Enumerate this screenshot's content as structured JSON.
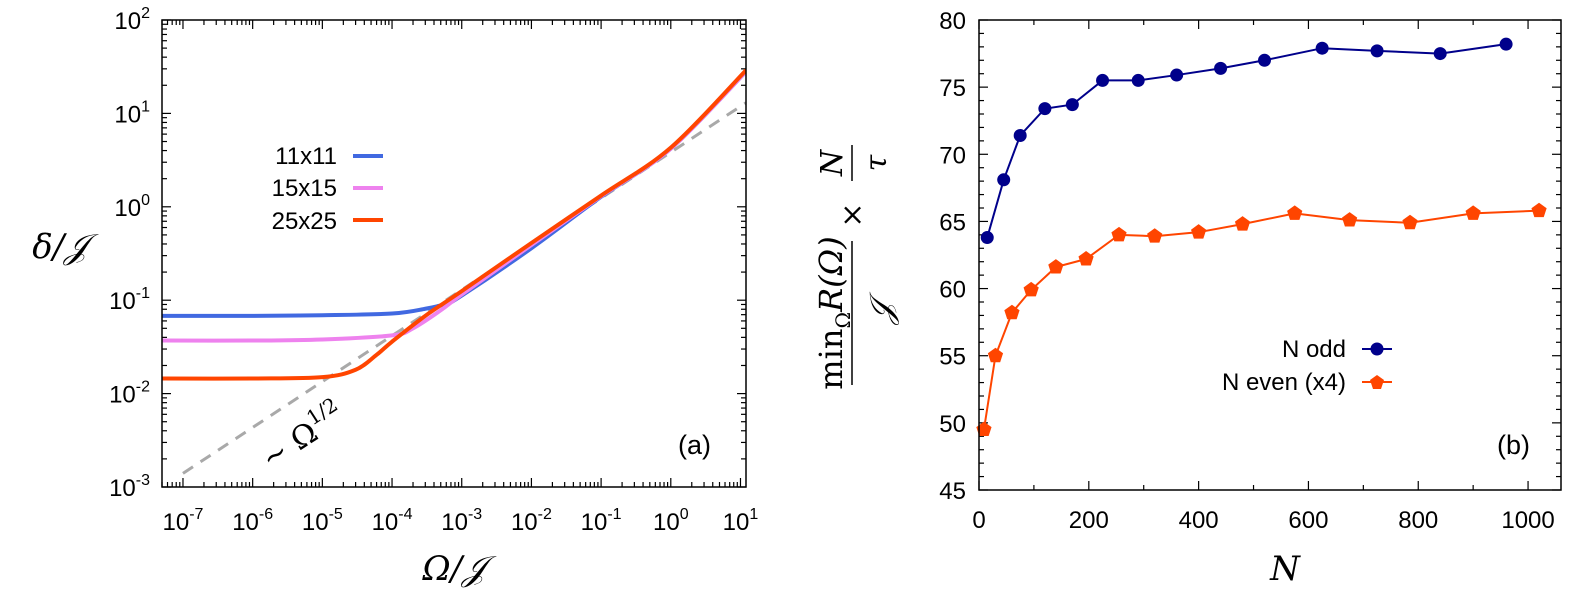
{
  "chart_data": [
    {
      "type": "line",
      "panel_label": "(a)",
      "xlabel": "Ω/𝒥",
      "ylabel": "δ/𝒥",
      "xscale": "log",
      "yscale": "log",
      "xlim": [
        5e-08,
        12
      ],
      "ylim": [
        0.001,
        100
      ],
      "x_tick_labels": [
        {
          "base": "10",
          "exp": "-7"
        },
        {
          "base": "10",
          "exp": "-6"
        },
        {
          "base": "10",
          "exp": "-5"
        },
        {
          "base": "10",
          "exp": "-4"
        },
        {
          "base": "10",
          "exp": "-3"
        },
        {
          "base": "10",
          "exp": "-2"
        },
        {
          "base": "10",
          "exp": "-1"
        },
        {
          "base": "10",
          "exp": "0"
        },
        {
          "base": "10",
          "exp": "1"
        }
      ],
      "y_tick_labels": [
        {
          "base": "10",
          "exp": "-3"
        },
        {
          "base": "10",
          "exp": "-2"
        },
        {
          "base": "10",
          "exp": "-1"
        },
        {
          "base": "10",
          "exp": "0"
        },
        {
          "base": "10",
          "exp": "1"
        },
        {
          "base": "10",
          "exp": "2"
        }
      ],
      "legend_position": "upper-left",
      "series": [
        {
          "name": "11x11",
          "color": "#4169e1",
          "x": [
            5e-08,
            1e-06,
            1e-05,
            0.0001,
            0.0003,
            0.0006,
            0.001,
            0.01,
            0.1,
            1,
            12
          ],
          "y": [
            0.068,
            0.068,
            0.069,
            0.072,
            0.081,
            0.092,
            0.112,
            0.36,
            1.28,
            4.2,
            28
          ]
        },
        {
          "name": "15x15",
          "color": "#ee82ee",
          "x": [
            5e-08,
            1e-06,
            1e-05,
            0.0001,
            0.0002,
            0.0005,
            0.001,
            0.01,
            0.1,
            1,
            12
          ],
          "y": [
            0.037,
            0.037,
            0.038,
            0.042,
            0.05,
            0.078,
            0.115,
            0.39,
            1.3,
            4.2,
            28
          ]
        },
        {
          "name": "25x25",
          "color": "#ff4500",
          "x": [
            5e-08,
            1e-06,
            1e-05,
            3e-05,
            6e-05,
            0.0001,
            0.0003,
            0.001,
            0.01,
            0.1,
            1,
            12
          ],
          "y": [
            0.0145,
            0.0145,
            0.015,
            0.018,
            0.026,
            0.036,
            0.068,
            0.125,
            0.41,
            1.32,
            4.3,
            29
          ]
        }
      ],
      "guide": {
        "label_prefix": "~ Ω",
        "label_exp": "1/2",
        "color": "#a9a9a9",
        "x": [
          1e-07,
          12
        ],
        "y": [
          0.0014,
          13
        ]
      }
    },
    {
      "type": "line",
      "panel_label": "(b)",
      "xlabel": "N",
      "ylabel": "min_Ω R(Ω) / 𝒥 × N / τ",
      "ylabel_parts": {
        "min": "min",
        "sub": "Ω",
        "r": "R(Ω)",
        "den": "𝒥",
        "times": "×",
        "n": "N",
        "tau": "τ"
      },
      "xlim": [
        0,
        1060
      ],
      "ylim": [
        45,
        80
      ],
      "x_ticks": [
        0,
        200,
        400,
        600,
        800,
        1000
      ],
      "y_ticks": [
        45,
        50,
        55,
        60,
        65,
        70,
        75,
        80
      ],
      "legend_position": "right-middle",
      "series": [
        {
          "name": "N odd",
          "color": "#00008b",
          "marker": "circle",
          "x": [
            15,
            45,
            75,
            120,
            170,
            225,
            290,
            360,
            440,
            520,
            625,
            725,
            840,
            960
          ],
          "y": [
            63.8,
            68.1,
            71.4,
            73.4,
            73.7,
            75.5,
            75.5,
            75.9,
            76.4,
            77.0,
            77.9,
            77.7,
            77.5,
            78.2
          ]
        },
        {
          "name": "N even (x4)",
          "color": "#ff4500",
          "marker": "pentagon",
          "x": [
            9,
            30,
            60,
            95,
            140,
            195,
            255,
            320,
            400,
            480,
            575,
            675,
            785,
            900,
            1020
          ],
          "y": [
            49.5,
            55.0,
            58.2,
            59.9,
            61.6,
            62.2,
            64.0,
            63.9,
            64.2,
            64.8,
            65.6,
            65.1,
            64.9,
            65.6,
            65.8
          ]
        }
      ]
    }
  ]
}
